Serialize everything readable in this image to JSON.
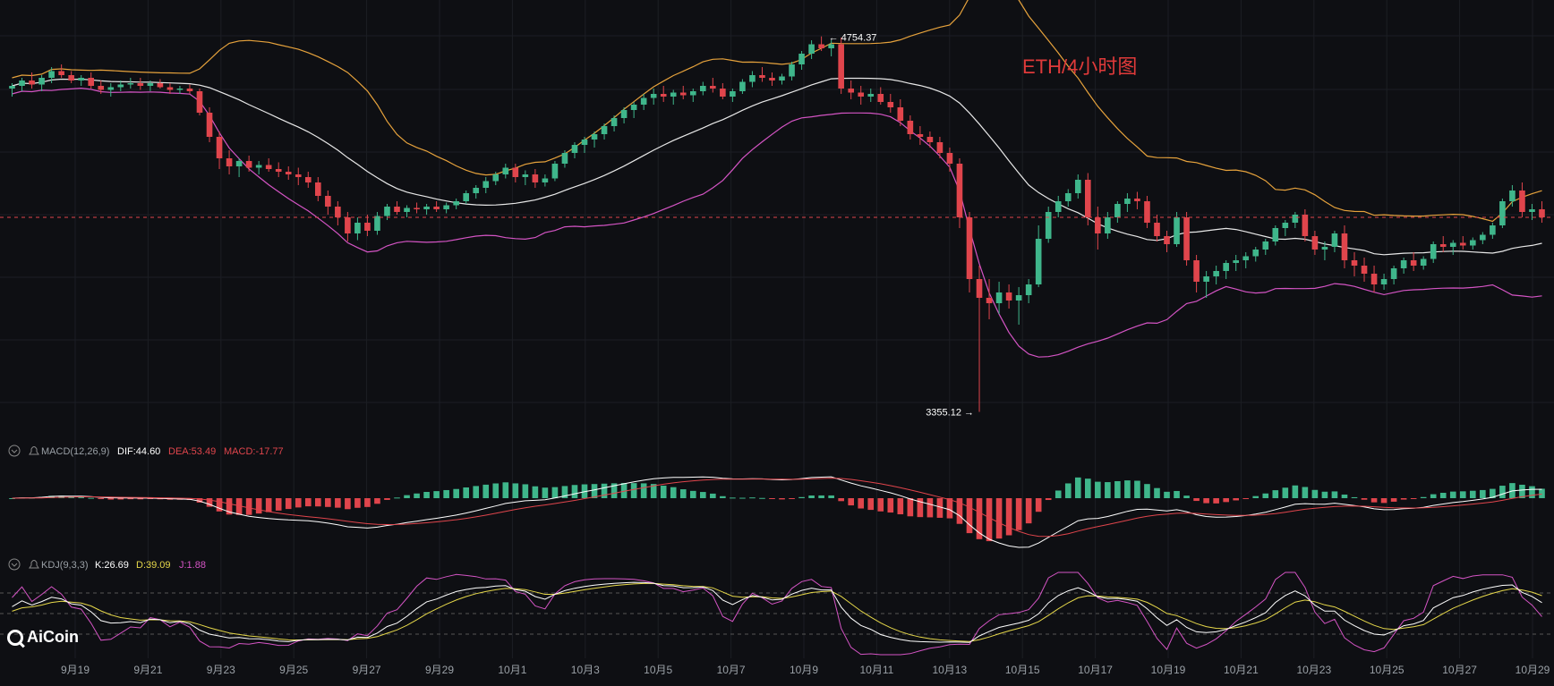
{
  "chart_title": "ETH/4小时图",
  "price_markers": {
    "high": "4754.37",
    "low": "3355.12"
  },
  "indicators": {
    "macd": {
      "name": "MACD(12,26,9)",
      "dif_label": "DIF:44.60",
      "dea_label": "DEA:53.49",
      "macd_label": "MACD:-17.77"
    },
    "kdj": {
      "name": "KDJ(9,3,3)",
      "k_label": "K:26.69",
      "d_label": "D:39.09",
      "j_label": "J:1.88"
    }
  },
  "watermark": "AiCoin",
  "colors": {
    "up": "#3fb68b",
    "down": "#e0454c",
    "upper_band": "#e6a23c",
    "middle_band": "#e8e8e8",
    "lower_band": "#d454c4",
    "title": "#e03a3a",
    "dea": "#e0454c",
    "kdj_d": "#e6d84a",
    "kdj_j": "#d454c4"
  },
  "chart_data": {
    "type": "candlestick",
    "series": [
      {
        "name": "ETH/4小时",
        "values": [
          [
            4560,
            4580,
            4530,
            4570
          ],
          [
            4570,
            4600,
            4550,
            4590
          ],
          [
            4590,
            4620,
            4560,
            4575
          ],
          [
            4575,
            4610,
            4550,
            4600
          ],
          [
            4600,
            4640,
            4580,
            4625
          ],
          [
            4625,
            4650,
            4600,
            4610
          ],
          [
            4610,
            4625,
            4580,
            4590
          ],
          [
            4590,
            4610,
            4570,
            4600
          ],
          [
            4600,
            4620,
            4560,
            4570
          ],
          [
            4570,
            4590,
            4540,
            4555
          ],
          [
            4555,
            4580,
            4530,
            4565
          ],
          [
            4565,
            4590,
            4550,
            4575
          ],
          [
            4575,
            4600,
            4560,
            4580
          ],
          [
            4580,
            4600,
            4555,
            4570
          ],
          [
            4570,
            4590,
            4550,
            4580
          ],
          [
            4580,
            4595,
            4560,
            4565
          ],
          [
            4565,
            4580,
            4540,
            4555
          ],
          [
            4555,
            4570,
            4540,
            4560
          ],
          [
            4560,
            4575,
            4540,
            4550
          ],
          [
            4550,
            4560,
            4460,
            4470
          ],
          [
            4470,
            4490,
            4360,
            4380
          ],
          [
            4380,
            4400,
            4260,
            4300
          ],
          [
            4300,
            4330,
            4240,
            4270
          ],
          [
            4270,
            4300,
            4230,
            4290
          ],
          [
            4290,
            4310,
            4250,
            4265
          ],
          [
            4265,
            4290,
            4240,
            4275
          ],
          [
            4275,
            4300,
            4250,
            4260
          ],
          [
            4260,
            4285,
            4230,
            4250
          ],
          [
            4250,
            4270,
            4220,
            4240
          ],
          [
            4240,
            4265,
            4200,
            4230
          ],
          [
            4230,
            4250,
            4190,
            4210
          ],
          [
            4210,
            4230,
            4140,
            4160
          ],
          [
            4160,
            4180,
            4090,
            4120
          ],
          [
            4120,
            4140,
            4050,
            4080
          ],
          [
            4080,
            4100,
            3990,
            4020
          ],
          [
            4020,
            4080,
            3995,
            4060
          ],
          [
            4060,
            4090,
            4010,
            4030
          ],
          [
            4030,
            4100,
            4015,
            4085
          ],
          [
            4085,
            4130,
            4070,
            4120
          ],
          [
            4120,
            4140,
            4090,
            4100
          ],
          [
            4100,
            4125,
            4080,
            4115
          ],
          [
            4115,
            4135,
            4095,
            4110
          ],
          [
            4110,
            4130,
            4090,
            4120
          ],
          [
            4120,
            4140,
            4100,
            4110
          ],
          [
            4110,
            4135,
            4095,
            4125
          ],
          [
            4125,
            4150,
            4110,
            4140
          ],
          [
            4140,
            4180,
            4130,
            4170
          ],
          [
            4170,
            4200,
            4150,
            4190
          ],
          [
            4190,
            4230,
            4170,
            4215
          ],
          [
            4215,
            4250,
            4200,
            4240
          ],
          [
            4240,
            4280,
            4225,
            4265
          ],
          [
            4265,
            4280,
            4210,
            4230
          ],
          [
            4230,
            4255,
            4200,
            4240
          ],
          [
            4240,
            4260,
            4190,
            4210
          ],
          [
            4210,
            4240,
            4195,
            4225
          ],
          [
            4225,
            4290,
            4215,
            4280
          ],
          [
            4280,
            4330,
            4265,
            4320
          ],
          [
            4320,
            4360,
            4300,
            4350
          ],
          [
            4350,
            4380,
            4320,
            4370
          ],
          [
            4370,
            4400,
            4340,
            4390
          ],
          [
            4390,
            4430,
            4370,
            4420
          ],
          [
            4420,
            4460,
            4400,
            4450
          ],
          [
            4450,
            4490,
            4430,
            4480
          ],
          [
            4480,
            4510,
            4450,
            4500
          ],
          [
            4500,
            4540,
            4480,
            4525
          ],
          [
            4525,
            4560,
            4500,
            4540
          ],
          [
            4540,
            4570,
            4510,
            4530
          ],
          [
            4530,
            4555,
            4500,
            4545
          ],
          [
            4545,
            4570,
            4520,
            4535
          ],
          [
            4535,
            4560,
            4510,
            4550
          ],
          [
            4550,
            4585,
            4535,
            4570
          ],
          [
            4570,
            4600,
            4545,
            4560
          ],
          [
            4560,
            4580,
            4520,
            4530
          ],
          [
            4530,
            4560,
            4510,
            4550
          ],
          [
            4550,
            4595,
            4540,
            4585
          ],
          [
            4585,
            4625,
            4565,
            4610
          ],
          [
            4610,
            4640,
            4585,
            4600
          ],
          [
            4600,
            4620,
            4570,
            4590
          ],
          [
            4590,
            4615,
            4575,
            4605
          ],
          [
            4605,
            4660,
            4590,
            4650
          ],
          [
            4650,
            4700,
            4630,
            4690
          ],
          [
            4690,
            4740,
            4670,
            4725
          ],
          [
            4725,
            4754.37,
            4700,
            4710
          ],
          [
            4710,
            4740,
            4680,
            4725
          ],
          [
            4725,
            4750,
            4540,
            4560
          ],
          [
            4560,
            4590,
            4520,
            4545
          ],
          [
            4545,
            4570,
            4500,
            4530
          ],
          [
            4530,
            4560,
            4510,
            4540
          ],
          [
            4540,
            4565,
            4500,
            4510
          ],
          [
            4510,
            4540,
            4470,
            4490
          ],
          [
            4490,
            4520,
            4420,
            4440
          ],
          [
            4440,
            4460,
            4370,
            4390
          ],
          [
            4390,
            4420,
            4350,
            4380
          ],
          [
            4380,
            4400,
            4340,
            4360
          ],
          [
            4360,
            4380,
            4300,
            4320
          ],
          [
            4320,
            4340,
            4250,
            4280
          ],
          [
            4280,
            4300,
            4040,
            4080
          ],
          [
            4080,
            4100,
            3800,
            3850
          ],
          [
            3850,
            3900,
            3355.12,
            3780
          ],
          [
            3780,
            3850,
            3700,
            3760
          ],
          [
            3760,
            3840,
            3720,
            3800
          ],
          [
            3800,
            3830,
            3740,
            3770
          ],
          [
            3770,
            3820,
            3680,
            3790
          ],
          [
            3790,
            3850,
            3760,
            3830
          ],
          [
            3830,
            4050,
            3820,
            4000
          ],
          [
            4000,
            4120,
            3985,
            4100
          ],
          [
            4100,
            4160,
            4080,
            4140
          ],
          [
            4140,
            4185,
            4120,
            4170
          ],
          [
            4170,
            4240,
            4150,
            4220
          ],
          [
            4220,
            4245,
            4050,
            4080
          ],
          [
            4080,
            4120,
            3960,
            4020
          ],
          [
            4020,
            4100,
            4000,
            4080
          ],
          [
            4080,
            4140,
            4060,
            4130
          ],
          [
            4130,
            4170,
            4100,
            4150
          ],
          [
            4150,
            4175,
            4110,
            4140
          ],
          [
            4140,
            4160,
            4040,
            4060
          ],
          [
            4060,
            4090,
            3990,
            4010
          ],
          [
            4010,
            4030,
            3950,
            3980
          ],
          [
            3980,
            4100,
            3970,
            4080
          ],
          [
            4080,
            4100,
            3900,
            3920
          ],
          [
            3920,
            3940,
            3800,
            3840
          ],
          [
            3840,
            3880,
            3780,
            3860
          ],
          [
            3860,
            3900,
            3830,
            3880
          ],
          [
            3880,
            3920,
            3850,
            3910
          ],
          [
            3910,
            3940,
            3880,
            3920
          ],
          [
            3920,
            3950,
            3890,
            3935
          ],
          [
            3935,
            3970,
            3915,
            3960
          ],
          [
            3960,
            4000,
            3940,
            3990
          ],
          [
            3990,
            4050,
            3975,
            4040
          ],
          [
            4040,
            4070,
            4010,
            4060
          ],
          [
            4060,
            4100,
            4040,
            4090
          ],
          [
            4090,
            4110,
            3990,
            4010
          ],
          [
            4010,
            4030,
            3940,
            3960
          ],
          [
            3960,
            3990,
            3920,
            3970
          ],
          [
            3970,
            4030,
            3950,
            4020
          ],
          [
            4020,
            4050,
            3890,
            3920
          ],
          [
            3920,
            3950,
            3860,
            3900
          ],
          [
            3900,
            3930,
            3840,
            3870
          ],
          [
            3870,
            3900,
            3800,
            3830
          ],
          [
            3830,
            3870,
            3810,
            3850
          ],
          [
            3850,
            3900,
            3830,
            3890
          ],
          [
            3890,
            3930,
            3870,
            3920
          ],
          [
            3920,
            3950,
            3880,
            3900
          ],
          [
            3900,
            3935,
            3885,
            3925
          ],
          [
            3925,
            3990,
            3910,
            3980
          ],
          [
            3980,
            4010,
            3950,
            3970
          ],
          [
            3970,
            3995,
            3940,
            3985
          ],
          [
            3985,
            4010,
            3960,
            3975
          ],
          [
            3975,
            4005,
            3960,
            3995
          ],
          [
            3995,
            4025,
            3980,
            4015
          ],
          [
            4015,
            4060,
            4000,
            4050
          ],
          [
            4050,
            4150,
            4040,
            4140
          ],
          [
            4140,
            4200,
            4120,
            4180
          ],
          [
            4180,
            4210,
            4080,
            4100
          ],
          [
            4100,
            4130,
            4070,
            4110
          ],
          [
            4110,
            4140,
            4060,
            4080
          ]
        ]
      }
    ],
    "x_tick_labels": [
      "9月19",
      "9月21",
      "9月23",
      "9月25",
      "9月27",
      "9月29",
      "10月1",
      "10月3",
      "10月5",
      "10月7",
      "10月9",
      "10月11",
      "10月13",
      "10月15",
      "10月17",
      "10月19",
      "10月21",
      "10月23",
      "10月25",
      "10月27",
      "10月29"
    ],
    "ylim": [
      3240,
      4890
    ]
  }
}
